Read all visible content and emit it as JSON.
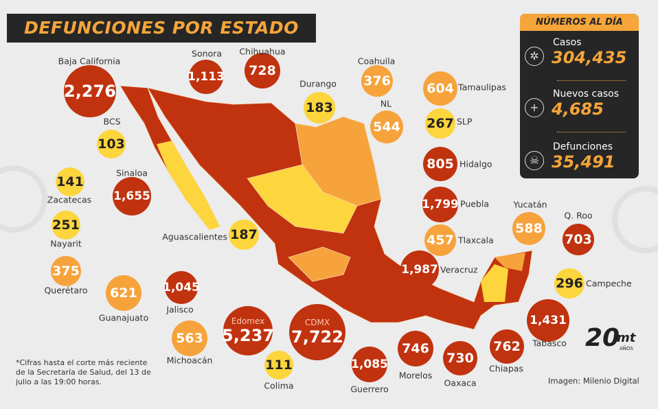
{
  "title": "DEFUNCIONES POR ESTADO",
  "colors": {
    "red": "#c1320f",
    "orange": "#f6a33c",
    "yellow": "#fdd53c",
    "dark": "#262626",
    "accent": "#f5a53a"
  },
  "panel": {
    "header": "NÚMEROS AL DÍA",
    "stats": [
      {
        "label": "Casos",
        "value": "304,435",
        "icon": "virus-icon"
      },
      {
        "label": "Nuevos casos",
        "value": "4,685",
        "icon": "plus-icon"
      },
      {
        "label": "Defunciones",
        "value": "35,491",
        "icon": "skull-icon"
      }
    ]
  },
  "states": [
    {
      "name": "Baja California",
      "value": "2,276",
      "level": "red"
    },
    {
      "name": "Sonora",
      "value": "1,113",
      "level": "red"
    },
    {
      "name": "Chihuahua",
      "value": "728",
      "level": "red"
    },
    {
      "name": "Durango",
      "value": "183",
      "level": "yellow"
    },
    {
      "name": "Coahuila",
      "value": "376",
      "level": "orange"
    },
    {
      "name": "Tamaulipas",
      "value": "604",
      "level": "orange"
    },
    {
      "name": "NL",
      "value": "544",
      "level": "orange"
    },
    {
      "name": "SLP",
      "value": "267",
      "level": "yellow"
    },
    {
      "name": "BCS",
      "value": "103",
      "level": "yellow"
    },
    {
      "name": "Hidalgo",
      "value": "805",
      "level": "red"
    },
    {
      "name": "Zacatecas",
      "value": "141",
      "level": "yellow"
    },
    {
      "name": "Sinaloa",
      "value": "1,655",
      "level": "red"
    },
    {
      "name": "Puebla",
      "value": "1,799",
      "level": "red"
    },
    {
      "name": "Nayarit",
      "value": "251",
      "level": "yellow"
    },
    {
      "name": "Aguascalientes",
      "value": "187",
      "level": "yellow"
    },
    {
      "name": "Tlaxcala",
      "value": "457",
      "level": "orange"
    },
    {
      "name": "Yucatán",
      "value": "588",
      "level": "orange"
    },
    {
      "name": "Q. Roo",
      "value": "703",
      "level": "red"
    },
    {
      "name": "Querétaro",
      "value": "375",
      "level": "orange"
    },
    {
      "name": "Veracruz",
      "value": "1,987",
      "level": "red"
    },
    {
      "name": "Campeche",
      "value": "296",
      "level": "yellow"
    },
    {
      "name": "Guanajuato",
      "value": "621",
      "level": "orange"
    },
    {
      "name": "Jalisco",
      "value": "1,045",
      "level": "red"
    },
    {
      "name": "Tabasco",
      "value": "1,431",
      "level": "red"
    },
    {
      "name": "Michoacán",
      "value": "563",
      "level": "orange"
    },
    {
      "name": "Edomex",
      "value": "5,237",
      "level": "red"
    },
    {
      "name": "CDMX",
      "value": "7,722",
      "level": "red"
    },
    {
      "name": "Colima",
      "value": "111",
      "level": "yellow"
    },
    {
      "name": "Guerrero",
      "value": "1,085",
      "level": "red"
    },
    {
      "name": "Morelos",
      "value": "746",
      "level": "red"
    },
    {
      "name": "Oaxaca",
      "value": "730",
      "level": "red"
    },
    {
      "name": "Chiapas",
      "value": "762",
      "level": "red"
    }
  ],
  "note": "*Cifras hasta el corte más reciente de la Secretaría de Salud, del 13 de julio a las 19:00 horas.",
  "credit": "Imagen: Milenio Digital",
  "logo": {
    "number": "20",
    "brand": "mt",
    "sub": "AÑOS"
  }
}
